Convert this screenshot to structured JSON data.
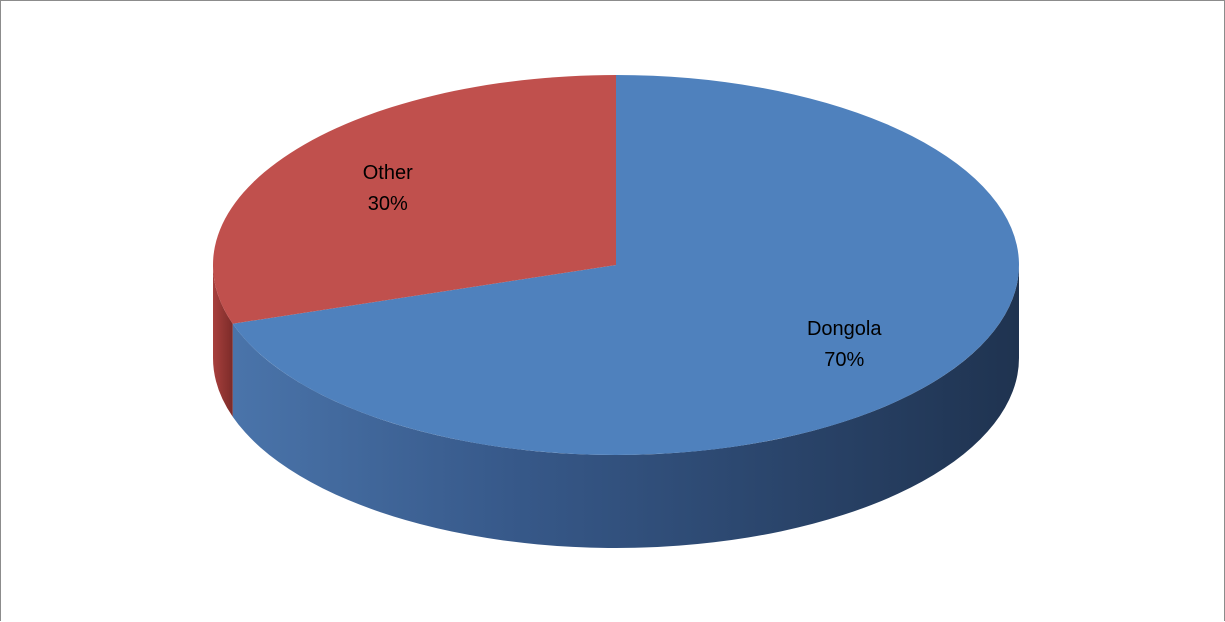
{
  "chart_data": {
    "type": "pie",
    "style": "3d",
    "slices": [
      {
        "label": "Dongola",
        "value": 70,
        "percent_label": "70%",
        "color": "#4F81BD"
      },
      {
        "label": "Other",
        "value": 30,
        "percent_label": "30%",
        "color": "#C0504D"
      }
    ],
    "legend": "none"
  }
}
